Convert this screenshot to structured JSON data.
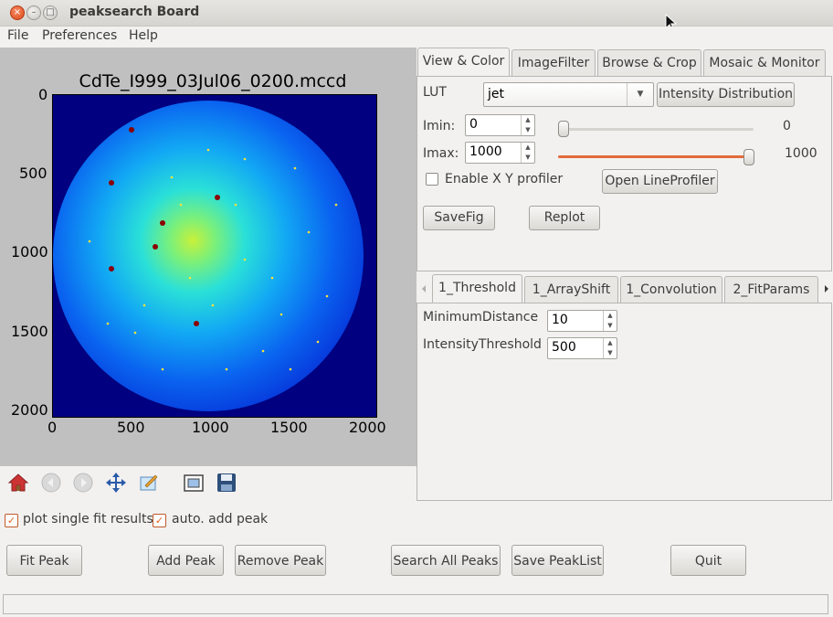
{
  "window": {
    "title": "peaksearch Board"
  },
  "menu": {
    "items": [
      "File",
      "Preferences",
      "Help"
    ]
  },
  "plot": {
    "title": "CdTe_I999_03Jul06_0200.mccd",
    "yticks": [
      "0",
      "500",
      "1000",
      "1500",
      "2000"
    ],
    "xticks": [
      "0",
      "500",
      "1000",
      "1500",
      "2000"
    ]
  },
  "toolbar_icons": [
    "home-icon",
    "back-icon",
    "forward-icon",
    "pan-icon",
    "zoom-icon",
    "subplots-icon",
    "save-icon"
  ],
  "options": {
    "plot_single_fit": {
      "label": "plot single fit results",
      "checked": true
    },
    "auto_add_peak": {
      "label": "auto. add peak",
      "checked": true
    }
  },
  "actions": {
    "fit_peak": "Fit Peak",
    "add_peak": "Add Peak",
    "remove_peak": "Remove Peak",
    "search_all_peaks": "Search All Peaks",
    "save_peaklist": "Save PeakList",
    "quit": "Quit"
  },
  "view_tabs": [
    "View & Color",
    "ImageFilter",
    "Browse & Crop",
    "Mosaic & Monitor"
  ],
  "view_color": {
    "lut_label": "LUT",
    "lut_value": "jet",
    "intensity_distribution": "Intensity Distribution",
    "imin_label": "Imin:",
    "imin_value": "0",
    "imin_slider_text": "0",
    "imax_label": "Imax:",
    "imax_value": "1000",
    "imax_slider_text": "1000",
    "imin_slider_fraction": 0.0,
    "imax_slider_fraction": 1.0,
    "xy_profiler_label": "Enable X Y profiler",
    "xy_profiler_checked": false,
    "open_lineprofiler": "Open LineProfiler",
    "savefig": "SaveFig",
    "replot": "Replot"
  },
  "param_tabs": [
    "1_Threshold",
    "1_ArrayShift",
    "1_Convolution",
    "2_FitParams"
  ],
  "threshold": {
    "min_distance_label": "MinimumDistance",
    "min_distance_value": "10",
    "intensity_threshold_label": "IntensityThreshold",
    "intensity_threshold_value": "500"
  },
  "colors": {
    "accent": "#e0601a",
    "plot_bg": "#000080",
    "slider_fill": "#e46b3c"
  }
}
